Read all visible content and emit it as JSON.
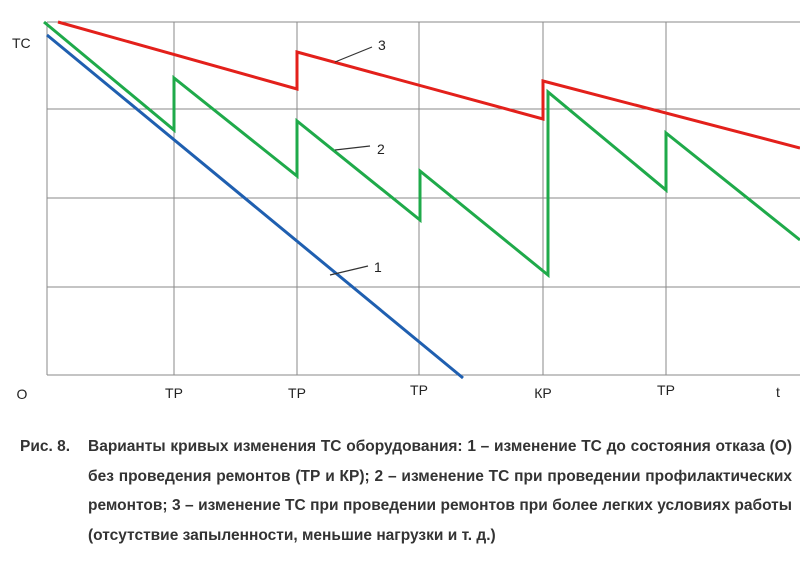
{
  "axis": {
    "y_label": "ТС",
    "origin": "О",
    "x_labels": [
      "ТР",
      "ТР",
      "ТР",
      "КР",
      "ТР",
      "t"
    ]
  },
  "curves": {
    "labels": [
      "1",
      "2",
      "3"
    ]
  },
  "caption": {
    "label": "Рис. 8.",
    "text": "Варианты кривых изменения ТС оборудования: 1 – изменение ТС до состояния отказа (О) без проведения ремонтов (ТР и КР); 2 – изменение ТС при проведении профилактических ремонтов; 3 – изменение ТС при проведении ремонтов при более легких условиях работы (отсутствие запыленности, меньшие нагрузки и т. д.)"
  }
}
